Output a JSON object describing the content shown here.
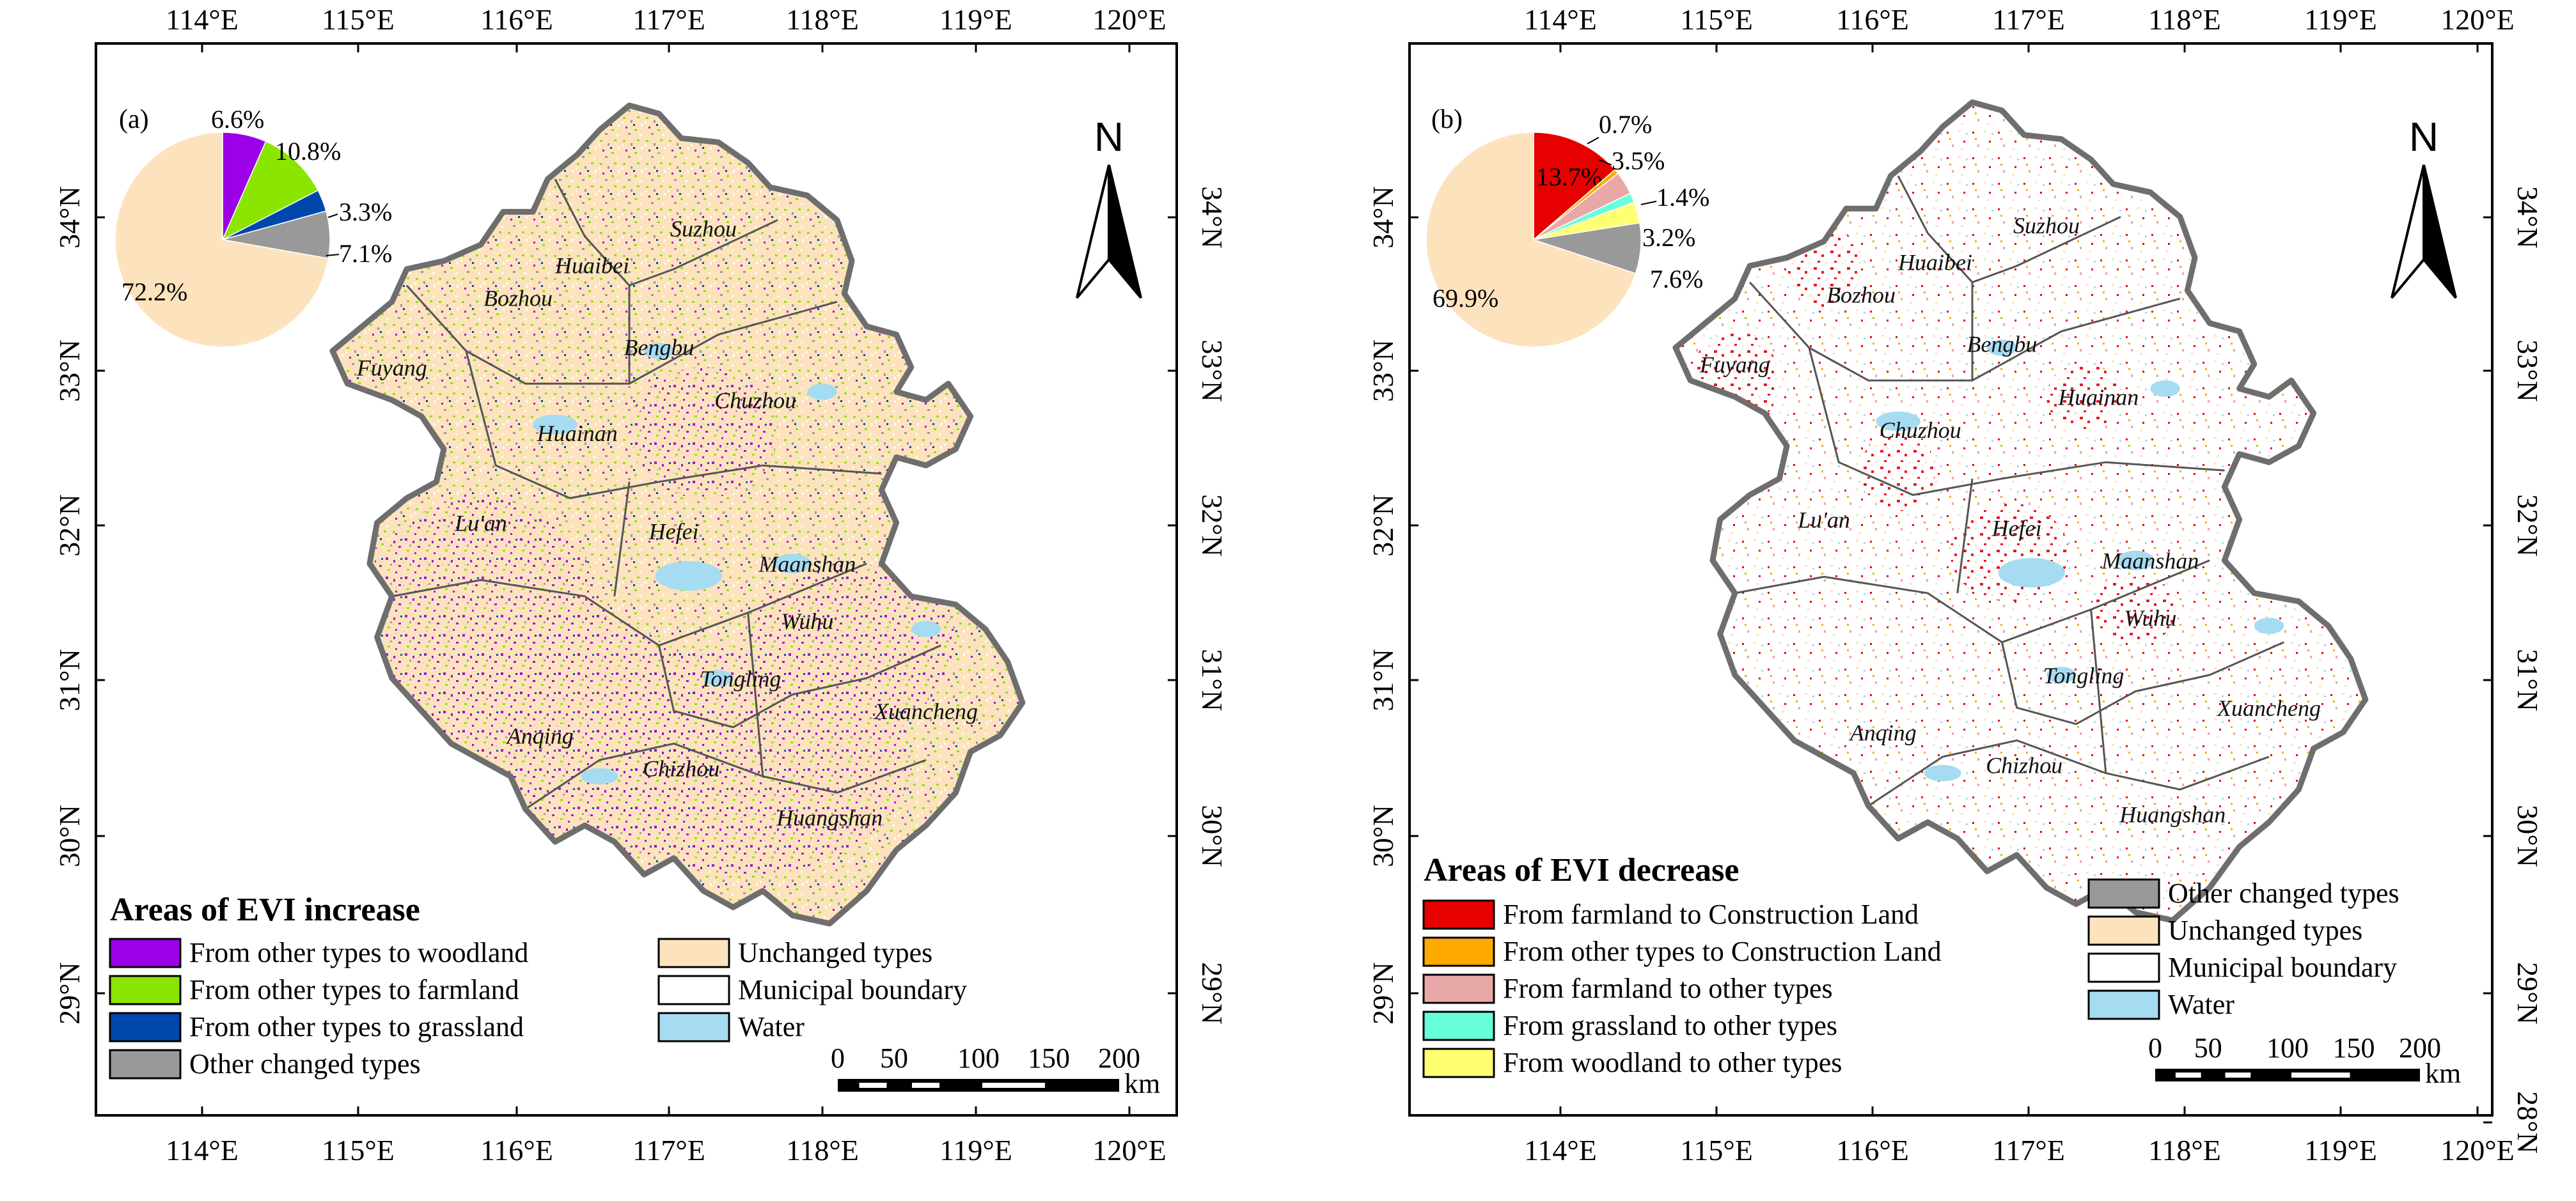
{
  "colors": {
    "woodland_gain": "#9b00e6",
    "farmland_gain": "#8ae600",
    "grassland_gain": "#0047ab",
    "other_changed": "#999999",
    "unchanged": "#fde3bd",
    "water": "#a6dcf2",
    "farm_to_construction": "#e60000",
    "other_to_construction": "#ffaa00",
    "farm_to_other": "#e8a8a8",
    "grass_to_other": "#66ffd9",
    "wood_to_other": "#ffff73",
    "boundary": "#555555",
    "province_outline": "#6e6e6e"
  },
  "axes": {
    "lon_ticks": [
      "114°E",
      "115°E",
      "116°E",
      "117°E",
      "118°E",
      "119°E",
      "120°E"
    ],
    "lat_ticks": [
      "34°N",
      "33°N",
      "32°N",
      "31°N",
      "30°N",
      "29°N"
    ],
    "lat_ticks_right": [
      "34°N",
      "33°N",
      "32°N",
      "31°N",
      "30°N",
      "29°N",
      "28°N"
    ]
  },
  "cities_a": [
    "Suzhou",
    "Huaibei",
    "Bozhou",
    "Bengbu",
    "Fuyang",
    "Huainan",
    "Chuzhou",
    "Lu'an",
    "Hefei",
    "Maanshan",
    "Wuhu",
    "Tongling",
    "Xuancheng",
    "Anqing",
    "Chizhou",
    "Huangshan"
  ],
  "cities_b": [
    "Suzhou",
    "Huaibei",
    "Bozhou",
    "Bengbu",
    "Fuyang",
    "Chuzhou",
    "Huainan",
    "Lu'an",
    "Hefei",
    "Maanshan",
    "Wuhu",
    "Tongling",
    "Xuancheng",
    "Anqing",
    "Chizhou",
    "Huangshan"
  ],
  "panel_a": {
    "letter": "(a)",
    "north": "N",
    "pie": {
      "slices": [
        {
          "label": "6.6%",
          "value": 6.6,
          "color": "#9b00e6"
        },
        {
          "label": "10.8%",
          "value": 10.8,
          "color": "#8ae600"
        },
        {
          "label": "3.3%",
          "value": 3.3,
          "color": "#0047ab"
        },
        {
          "label": "7.1%",
          "value": 7.1,
          "color": "#999999"
        },
        {
          "label": "72.2%",
          "value": 72.2,
          "color": "#fde3bd"
        }
      ]
    },
    "legend": {
      "title": "Areas of EVI increase",
      "left_items": [
        {
          "text": "From other types to woodland",
          "color": "#9b00e6"
        },
        {
          "text": "From other types to farmland",
          "color": "#8ae600"
        },
        {
          "text": "From other types to grassland",
          "color": "#0047ab"
        },
        {
          "text": "Other changed types",
          "color": "#999999"
        }
      ],
      "right_items": [
        {
          "text": "Unchanged types",
          "color": "#fde3bd"
        },
        {
          "text": "Municipal boundary",
          "color": "#ffffff"
        },
        {
          "text": "Water",
          "color": "#a6dcf2"
        }
      ]
    },
    "scale": {
      "labels": [
        "0",
        "50",
        "100",
        "150",
        "200"
      ],
      "unit": "km"
    }
  },
  "panel_b": {
    "letter": "(b)",
    "north": "N",
    "pie": {
      "slices": [
        {
          "label": "13.7%",
          "value": 13.7,
          "color": "#e60000"
        },
        {
          "label": "0.7%",
          "value": 0.7,
          "color": "#ffaa00"
        },
        {
          "label": "3.5%",
          "value": 3.5,
          "color": "#e8a8a8"
        },
        {
          "label": "1.4%",
          "value": 1.4,
          "color": "#66ffd9"
        },
        {
          "label": "3.2%",
          "value": 3.2,
          "color": "#ffff73"
        },
        {
          "label": "7.6%",
          "value": 7.6,
          "color": "#999999"
        },
        {
          "label": "69.9%",
          "value": 69.9,
          "color": "#fde3bd"
        }
      ]
    },
    "legend": {
      "title": "Areas of EVI decrease",
      "left_items": [
        {
          "text": "From farmland to Construction Land",
          "color": "#e60000"
        },
        {
          "text": "From other types to Construction Land",
          "color": "#ffaa00"
        },
        {
          "text": "From farmland to other types",
          "color": "#e8a8a8"
        },
        {
          "text": "From grassland to other types",
          "color": "#66ffd9"
        },
        {
          "text": "From woodland to other types",
          "color": "#ffff73"
        }
      ],
      "right_items": [
        {
          "text": "Other changed types",
          "color": "#999999"
        },
        {
          "text": "Unchanged types",
          "color": "#fde3bd"
        },
        {
          "text": "Municipal boundary",
          "color": "#ffffff"
        },
        {
          "text": "Water",
          "color": "#a6dcf2"
        }
      ]
    },
    "scale": {
      "labels": [
        "0",
        "50",
        "100",
        "150",
        "200"
      ],
      "unit": "km"
    }
  }
}
